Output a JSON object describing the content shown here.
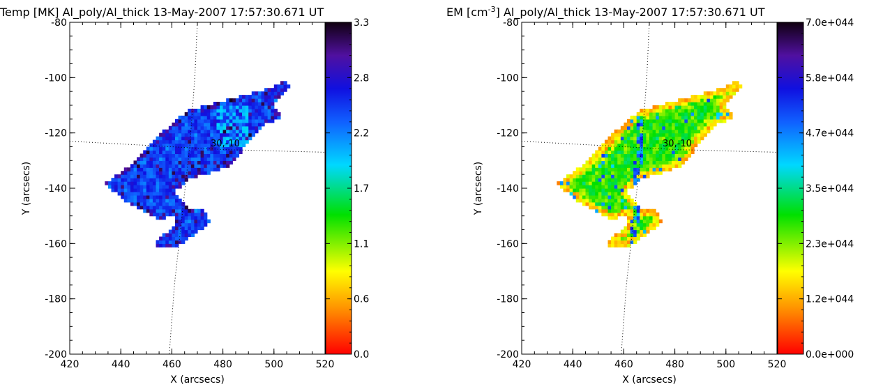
{
  "chart_data": [
    {
      "type": "heatmap",
      "title": "Temp [MK] Al_poly/Al_thick 13-May-2007 17:57:30.671 UT",
      "title_parts": {
        "prefix": "Temp [MK]",
        "rest": "Al_poly/Al_thick 13-May-2007 17:57:30.671 UT"
      },
      "xlabel": "X (arcsecs)",
      "ylabel": "Y (arcsecs)",
      "xlim": [
        420,
        520
      ],
      "ylim": [
        -200,
        -80
      ],
      "x_ticks": [
        "420",
        "440",
        "460",
        "480",
        "500",
        "520"
      ],
      "y_ticks": [
        "-80",
        "-100",
        "-120",
        "-140",
        "-160",
        "-180",
        "-200"
      ],
      "colorbar": {
        "min": 0.0,
        "max": 3.3,
        "ticks": [
          "0.0",
          "0.6",
          "1.1",
          "1.7",
          "2.2",
          "2.8",
          "3.3"
        ]
      },
      "grid_label": "30,-10",
      "map_mode": "temp",
      "typical_value_range": [
        1.9,
        3.2
      ]
    },
    {
      "type": "heatmap",
      "title": "EM [cm^-3] Al_poly/Al_thick 13-May-2007 17:57:30.671 UT",
      "title_parts": {
        "prefix": "EM [cm",
        "exponent": "-3",
        "suffix": "]",
        "rest": "Al_poly/Al_thick 13-May-2007 17:57:30.671 UT"
      },
      "xlabel": "X (arcsecs)",
      "ylabel": "Y (arcsecs)",
      "xlim": [
        420,
        520
      ],
      "ylim": [
        -200,
        -80
      ],
      "x_ticks": [
        "420",
        "440",
        "460",
        "480",
        "500",
        "520"
      ],
      "y_ticks": [
        "-80",
        "-100",
        "-120",
        "-140",
        "-160",
        "-180",
        "-200"
      ],
      "colorbar": {
        "min": 0.0,
        "max": 7e+44,
        "ticks": [
          "0.0e+000",
          "1.2e+044",
          "2.3e+044",
          "3.5e+044",
          "4.7e+044",
          "5.8e+044",
          "7.0e+044"
        ]
      },
      "grid_label": "30,-10",
      "map_mode": "em",
      "typical_value_range": [
        1.5e+44,
        5.5e+44
      ]
    }
  ],
  "region": {
    "outline": [
      [
        434,
        -138
      ],
      [
        446,
        -130
      ],
      [
        456,
        -120
      ],
      [
        466,
        -112
      ],
      [
        478,
        -109
      ],
      [
        490,
        -106
      ],
      [
        498,
        -104
      ],
      [
        505,
        -101
      ],
      [
        506,
        -104
      ],
      [
        499,
        -110
      ],
      [
        504,
        -114
      ],
      [
        496,
        -117
      ],
      [
        489,
        -124
      ],
      [
        486,
        -129
      ],
      [
        482,
        -132
      ],
      [
        476,
        -134
      ],
      [
        468,
        -136
      ],
      [
        461,
        -141
      ],
      [
        467,
        -147
      ],
      [
        473,
        -148
      ],
      [
        475,
        -152
      ],
      [
        470,
        -156
      ],
      [
        462,
        -161
      ],
      [
        453,
        -161
      ],
      [
        455,
        -158
      ],
      [
        460,
        -155
      ],
      [
        462,
        -150
      ],
      [
        454,
        -151
      ],
      [
        444,
        -146
      ],
      [
        437,
        -141
      ]
    ],
    "grid_lines": [
      [
        [
          420,
          -123
        ],
        [
          440,
          -124
        ],
        [
          460,
          -125
        ],
        [
          480,
          -126
        ],
        [
          500,
          -126.5
        ],
        [
          520,
          -127
        ]
      ],
      [
        [
          470,
          -80
        ],
        [
          469,
          -100
        ],
        [
          467,
          -125
        ],
        [
          464,
          -150
        ],
        [
          461,
          -175
        ],
        [
          459,
          -200
        ]
      ]
    ]
  }
}
